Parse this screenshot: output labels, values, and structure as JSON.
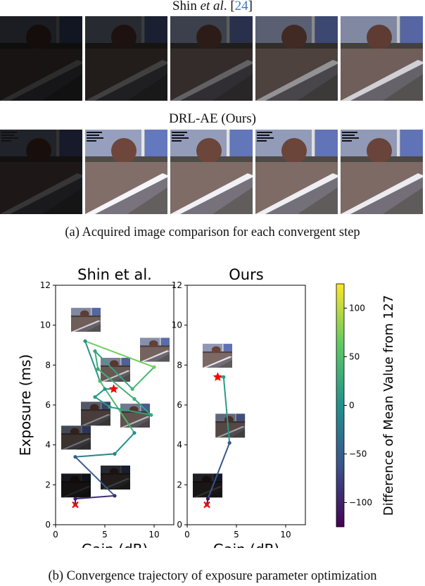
{
  "panel_a": {
    "row1_title_prefix": "Shin ",
    "row1_title_italic": "et al",
    "row1_title_dot": ". [",
    "row1_title_ref": "24",
    "row1_title_close": "]",
    "row2_title": "DRL-AE (Ours)",
    "caption": "(a) Acquired image comparison for each convergent step",
    "shin_brightness": [
      0.18,
      0.26,
      0.4,
      0.6,
      0.85
    ],
    "ours_brightness": [
      0.22,
      1.0,
      0.98,
      0.97,
      0.96
    ]
  },
  "caption_b": "(b) Convergence trajectory of exposure parameter optimization",
  "colors": {
    "high": "#440154",
    "mid_high": "#31688e",
    "mid": "#21918c",
    "low_mid": "#35b779",
    "zero": "#fde725",
    "marker": "#ff0000"
  },
  "chart_data": [
    {
      "type": "scatter",
      "title": "Shin et al.",
      "xlabel": "Gain (dB)",
      "ylabel": "Exposure (ms)",
      "xlim": [
        0,
        12
      ],
      "ylim": [
        0,
        12
      ],
      "xticks": [
        "0",
        "5",
        "10"
      ],
      "yticks": [
        "0",
        "2",
        "4",
        "6",
        "8",
        "10",
        "12"
      ],
      "start": [
        2.0,
        1.0
      ],
      "end": [
        5.9,
        6.8
      ],
      "points": [
        {
          "x": 2.0,
          "y": 1.0,
          "c": -115
        },
        {
          "x": 2.0,
          "y": 1.3,
          "c": -105
        },
        {
          "x": 6.0,
          "y": 1.45,
          "c": -90
        },
        {
          "x": 2.0,
          "y": 3.4,
          "c": -55
        },
        {
          "x": 6.0,
          "y": 3.55,
          "c": -15
        },
        {
          "x": 8.0,
          "y": 4.6,
          "c": 0
        },
        {
          "x": 4.5,
          "y": 7.2,
          "c": 45
        },
        {
          "x": 3.0,
          "y": 9.2,
          "c": 5
        },
        {
          "x": 10.0,
          "y": 7.9,
          "c": 70
        },
        {
          "x": 7.8,
          "y": 6.8,
          "c": 40
        },
        {
          "x": 4.0,
          "y": 8.7,
          "c": 20
        },
        {
          "x": 4.3,
          "y": 7.8,
          "c": 30
        },
        {
          "x": 8.0,
          "y": 6.3,
          "c": 35
        },
        {
          "x": 9.7,
          "y": 5.5,
          "c": 25
        },
        {
          "x": 5.5,
          "y": 5.9,
          "c": 15
        },
        {
          "x": 4.0,
          "y": 6.4,
          "c": 10
        },
        {
          "x": 5.0,
          "y": 6.8,
          "c": 5
        },
        {
          "x": 5.9,
          "y": 6.8,
          "c": 0
        }
      ],
      "thumbnails": [
        {
          "x": 3.0,
          "y": 10.3,
          "b": 0.85
        },
        {
          "x": 10.0,
          "y": 8.8,
          "b": 0.9
        },
        {
          "x": 6.0,
          "y": 7.8,
          "b": 0.8
        },
        {
          "x": 4.0,
          "y": 5.6,
          "b": 0.55
        },
        {
          "x": 8.0,
          "y": 5.5,
          "b": 0.75
        },
        {
          "x": 2.0,
          "y": 4.4,
          "b": 0.45
        },
        {
          "x": 2.0,
          "y": 2.0,
          "b": 0.15
        },
        {
          "x": 6.0,
          "y": 2.4,
          "b": 0.25
        }
      ]
    },
    {
      "type": "scatter",
      "title": "Ours",
      "xlabel": "Gain (dB)",
      "ylabel": "",
      "xlim": [
        0,
        12
      ],
      "ylim": [
        0,
        12
      ],
      "xticks": [
        "0",
        "5",
        "10"
      ],
      "yticks": [
        "0",
        "2",
        "4",
        "6",
        "8",
        "10",
        "12"
      ],
      "start": [
        2.0,
        1.0
      ],
      "end": [
        3.1,
        7.4
      ],
      "points": [
        {
          "x": 2.0,
          "y": 1.0,
          "c": -115
        },
        {
          "x": 2.1,
          "y": 1.3,
          "c": -110
        },
        {
          "x": 4.3,
          "y": 4.1,
          "c": -60
        },
        {
          "x": 3.7,
          "y": 7.4,
          "c": 10
        },
        {
          "x": 3.1,
          "y": 7.4,
          "c": 0
        }
      ],
      "thumbnails": [
        {
          "x": 3.0,
          "y": 8.5,
          "b": 0.95
        },
        {
          "x": 4.3,
          "y": 5.0,
          "b": 0.65
        },
        {
          "x": 2.0,
          "y": 2.0,
          "b": 0.2
        }
      ]
    }
  ],
  "colorbar": {
    "label": "Difference of Mean Value from 127",
    "range": [
      -125,
      125
    ],
    "ticks": [
      "100",
      "50",
      "0",
      "−50",
      "−100"
    ],
    "tick_values": [
      100,
      50,
      0,
      -50,
      -100
    ]
  }
}
